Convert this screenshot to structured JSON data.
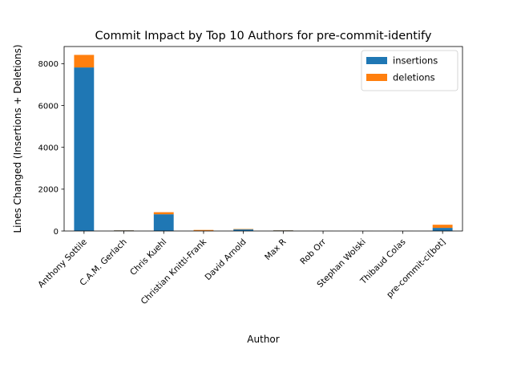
{
  "chart_data": {
    "type": "bar",
    "stacked": true,
    "title": "Commit Impact by Top 10 Authors for pre-commit-identify",
    "xlabel": "Author",
    "ylabel": "Lines Changed (Insertions + Deletions)",
    "categories": [
      "Anthony Sottile",
      "C.A.M. Gerlach",
      "Chris Kuehl",
      "Christian Knittl-Frank",
      "David Arnold",
      "Max R",
      "Rob Orr",
      "Stephan Wolski",
      "Thibaud Colas",
      "pre-commit-ci[bot]"
    ],
    "series": [
      {
        "name": "insertions",
        "color": "#1f77b4",
        "values": [
          7820,
          30,
          800,
          10,
          75,
          30,
          3,
          3,
          3,
          150
        ]
      },
      {
        "name": "deletions",
        "color": "#ff7f0e",
        "values": [
          600,
          10,
          100,
          40,
          20,
          10,
          2,
          2,
          2,
          150
        ]
      }
    ],
    "yticks": [
      0,
      2000,
      4000,
      6000,
      8000
    ],
    "ylim": [
      0,
      8820
    ],
    "legend": "top-right",
    "grid": false
  }
}
